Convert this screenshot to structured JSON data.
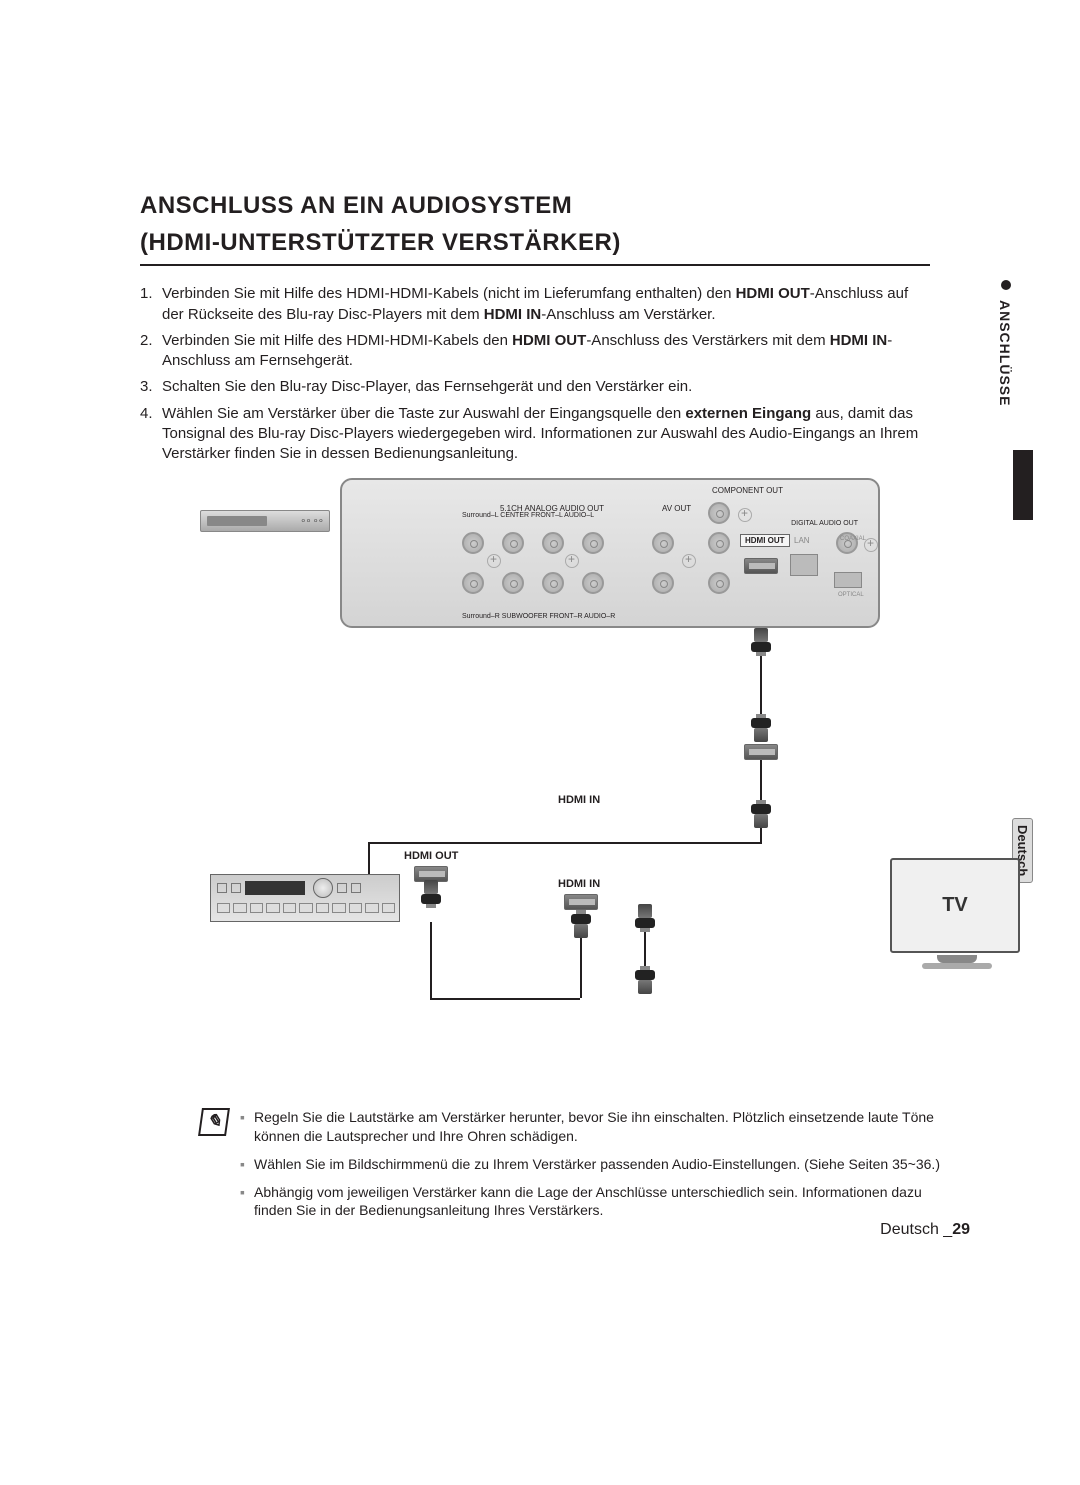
{
  "title_line1": "ANSCHLUSS AN EIN AUDIOSYSTEM",
  "title_line2": "(HDMI-UNTERSTÜTZTER VERSTÄRKER)",
  "steps": [
    {
      "num": "1.",
      "html": "Verbinden Sie mit Hilfe des HDMI-HDMI-Kabels (nicht im Lieferumfang enthalten) den <b>HDMI OUT</b>-Anschluss auf der Rückseite des Blu-ray Disc-Players mit dem <b>HDMI IN</b>-Anschluss am Verstärker."
    },
    {
      "num": "2.",
      "html": "Verbinden Sie mit Hilfe des HDMI-HDMI-Kabels den <b>HDMI OUT</b>-Anschluss des Verstärkers mit dem <b>HDMI IN</b>-Anschluss am Fernsehgerät."
    },
    {
      "num": "3.",
      "html": "Schalten Sie den Blu-ray Disc-Player, das Fernsehgerät und den Verstärker ein."
    },
    {
      "num": "4.",
      "html": "Wählen Sie am Verstärker über die Taste zur Auswahl der Eingangsquelle den <b>externen Eingang</b> aus, damit das Tonsignal des Blu-ray Disc-Players wiedergegeben wird. Informationen zur Auswahl des Audio-Eingangs an Ihrem Verstärker finden Sie in dessen Bedienungsanleitung."
    }
  ],
  "side_section": "ANSCHLÜSSE",
  "lang_tab": "Deutsch",
  "diagram": {
    "panel": {
      "component_out": "COMPONENT OUT",
      "analog_audio": "5.1CH ANALOG AUDIO OUT",
      "av_out": "AV OUT",
      "digital_audio": "DIGITAL AUDIO OUT",
      "row1_labels": "Surround–L   CENTER   FRONT–L   AUDIO–L",
      "row2_labels": "Surround–R  SUBWOOFER FRONT–R  AUDIO–R",
      "hdmi_out": "HDMI OUT",
      "lan": "LAN",
      "coaxial": "COAXIAL",
      "optical": "OPTICAL"
    },
    "labels": {
      "hdmi_in_amp": "HDMI IN",
      "hdmi_out_amp": "HDMI OUT",
      "hdmi_in_tv": "HDMI IN",
      "tv": "TV"
    }
  },
  "notes": [
    "Regeln Sie die Lautstärke am Verstärker herunter, bevor Sie ihn einschalten. Plötzlich einsetzende laute Töne können die Lautsprecher und Ihre Ohren schädigen.",
    "Wählen Sie im Bildschirmmenü die zu Ihrem Verstärker passenden Audio-Einstellungen. (Siehe Seiten 35~36.)",
    "Abhängig vom jeweiligen Verstärker kann die Lage der Anschlüsse unterschiedlich sein. Informationen dazu finden Sie in der Bedienungsanleitung Ihres Verstärkers."
  ],
  "footer_lang": "Deutsch _",
  "footer_page": "29",
  "colors": {
    "text": "#231f20",
    "panel_bg_start": "#e8e8e8",
    "panel_bg_end": "#d4d4d4",
    "border_gray": "#888888"
  }
}
